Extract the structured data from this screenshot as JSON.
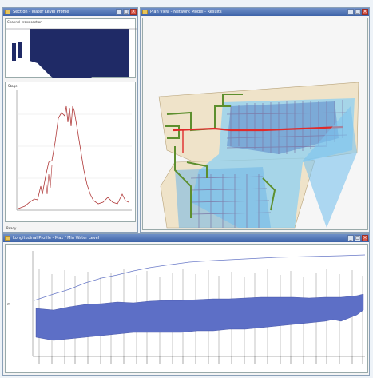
{
  "windows": {
    "profile": {
      "title": "Section  -  Water Level Profile",
      "section_label": "Channel cross section",
      "panel_label": "Stage"
    },
    "map": {
      "title": "Plan View  -  Network Model  -  Results"
    },
    "longprofile": {
      "title": "Longitudinal Profile  -  Max / Min Water Level",
      "ylabel": "m"
    }
  },
  "status": {
    "taskbar_text": "Ready"
  },
  "colors": {
    "titlebar": "#3e63a8",
    "band": "#5d6fc6",
    "trace": "#b03a3a",
    "water": "#4aa7e0",
    "main_channel": "#e02a2a",
    "land": "#efe3c9",
    "section_fill": "#1f2a66"
  },
  "icons": [
    "app-icon",
    "minimize-icon",
    "maximize-icon",
    "close-icon"
  ]
}
